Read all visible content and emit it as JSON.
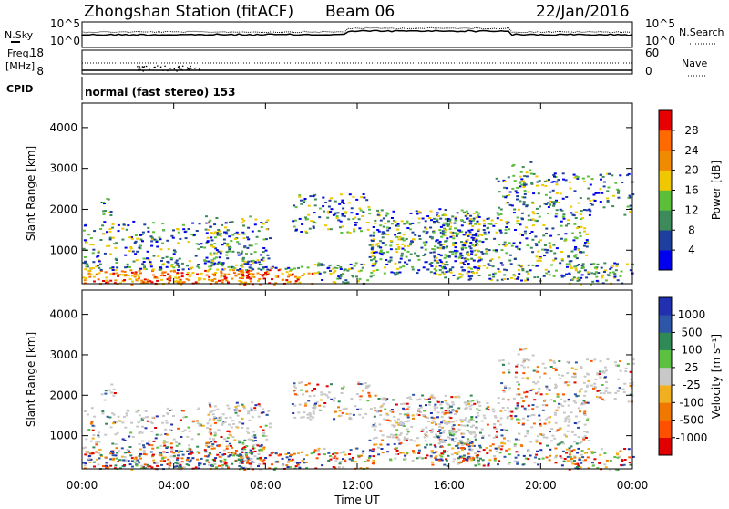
{
  "header": {
    "station": "Zhongshan Station (fitACF)",
    "beam": "Beam 06",
    "date": "22/Jan/2016"
  },
  "top_panels": {
    "left_labels": {
      "nsky": "N.Sky",
      "freq_line1": "Freq.",
      "freq_line2": "[MHz]",
      "cpid": "CPID"
    },
    "right_labels": {
      "nsearch": "N.Search",
      "nave": "Nave"
    },
    "noise_left_ticks": [
      "10^5",
      "10^0"
    ],
    "noise_right_ticks": [
      "10^5",
      "10^0"
    ],
    "freq_left_ticks": [
      "18",
      "8"
    ],
    "freq_right_ticks": [
      "60",
      "0"
    ],
    "cpid_text": "normal (fast stereo) 153"
  },
  "chart_data": [
    {
      "type": "heatmap",
      "title": "Power",
      "ylabel": "Slant Range [km]",
      "xlabel": "",
      "x_ticks": [
        "00:00",
        "04:00",
        "08:00",
        "12:00",
        "16:00",
        "20:00",
        "00:00"
      ],
      "y_ticks": [
        "1000",
        "2000",
        "3000",
        "4000"
      ],
      "xlim": [
        0,
        24
      ],
      "ylim": [
        180,
        4600
      ],
      "colorbar_label": "Power [dB]",
      "colorbar_ticks": [
        "4",
        "8",
        "12",
        "16",
        "20",
        "24",
        "28"
      ],
      "colorbar_colors": [
        "#0000ee",
        "#1e3f9c",
        "#3d8a5a",
        "#5cbf3a",
        "#f0c800",
        "#f08a00",
        "#ff6a00",
        "#e80000"
      ]
    },
    {
      "type": "heatmap",
      "title": "Velocity",
      "ylabel": "Slant Range [km]",
      "xlabel": "Time UT",
      "x_ticks": [
        "00:00",
        "04:00",
        "08:00",
        "12:00",
        "16:00",
        "20:00",
        "00:00"
      ],
      "y_ticks": [
        "1000",
        "2000",
        "3000",
        "4000"
      ],
      "xlim": [
        0,
        24
      ],
      "ylim": [
        180,
        4600
      ],
      "colorbar_label": "Velocity [m s⁻¹]",
      "colorbar_ticks": [
        "1000",
        "500",
        "100",
        "25",
        "-25",
        "-100",
        "-500",
        "-1000"
      ],
      "colorbar_colors": [
        "#2030b0",
        "#2d56a8",
        "#2f8a55",
        "#5cc040",
        "#c8c8c8",
        "#f0b020",
        "#f07800",
        "#ff5000",
        "#e00000"
      ]
    }
  ]
}
